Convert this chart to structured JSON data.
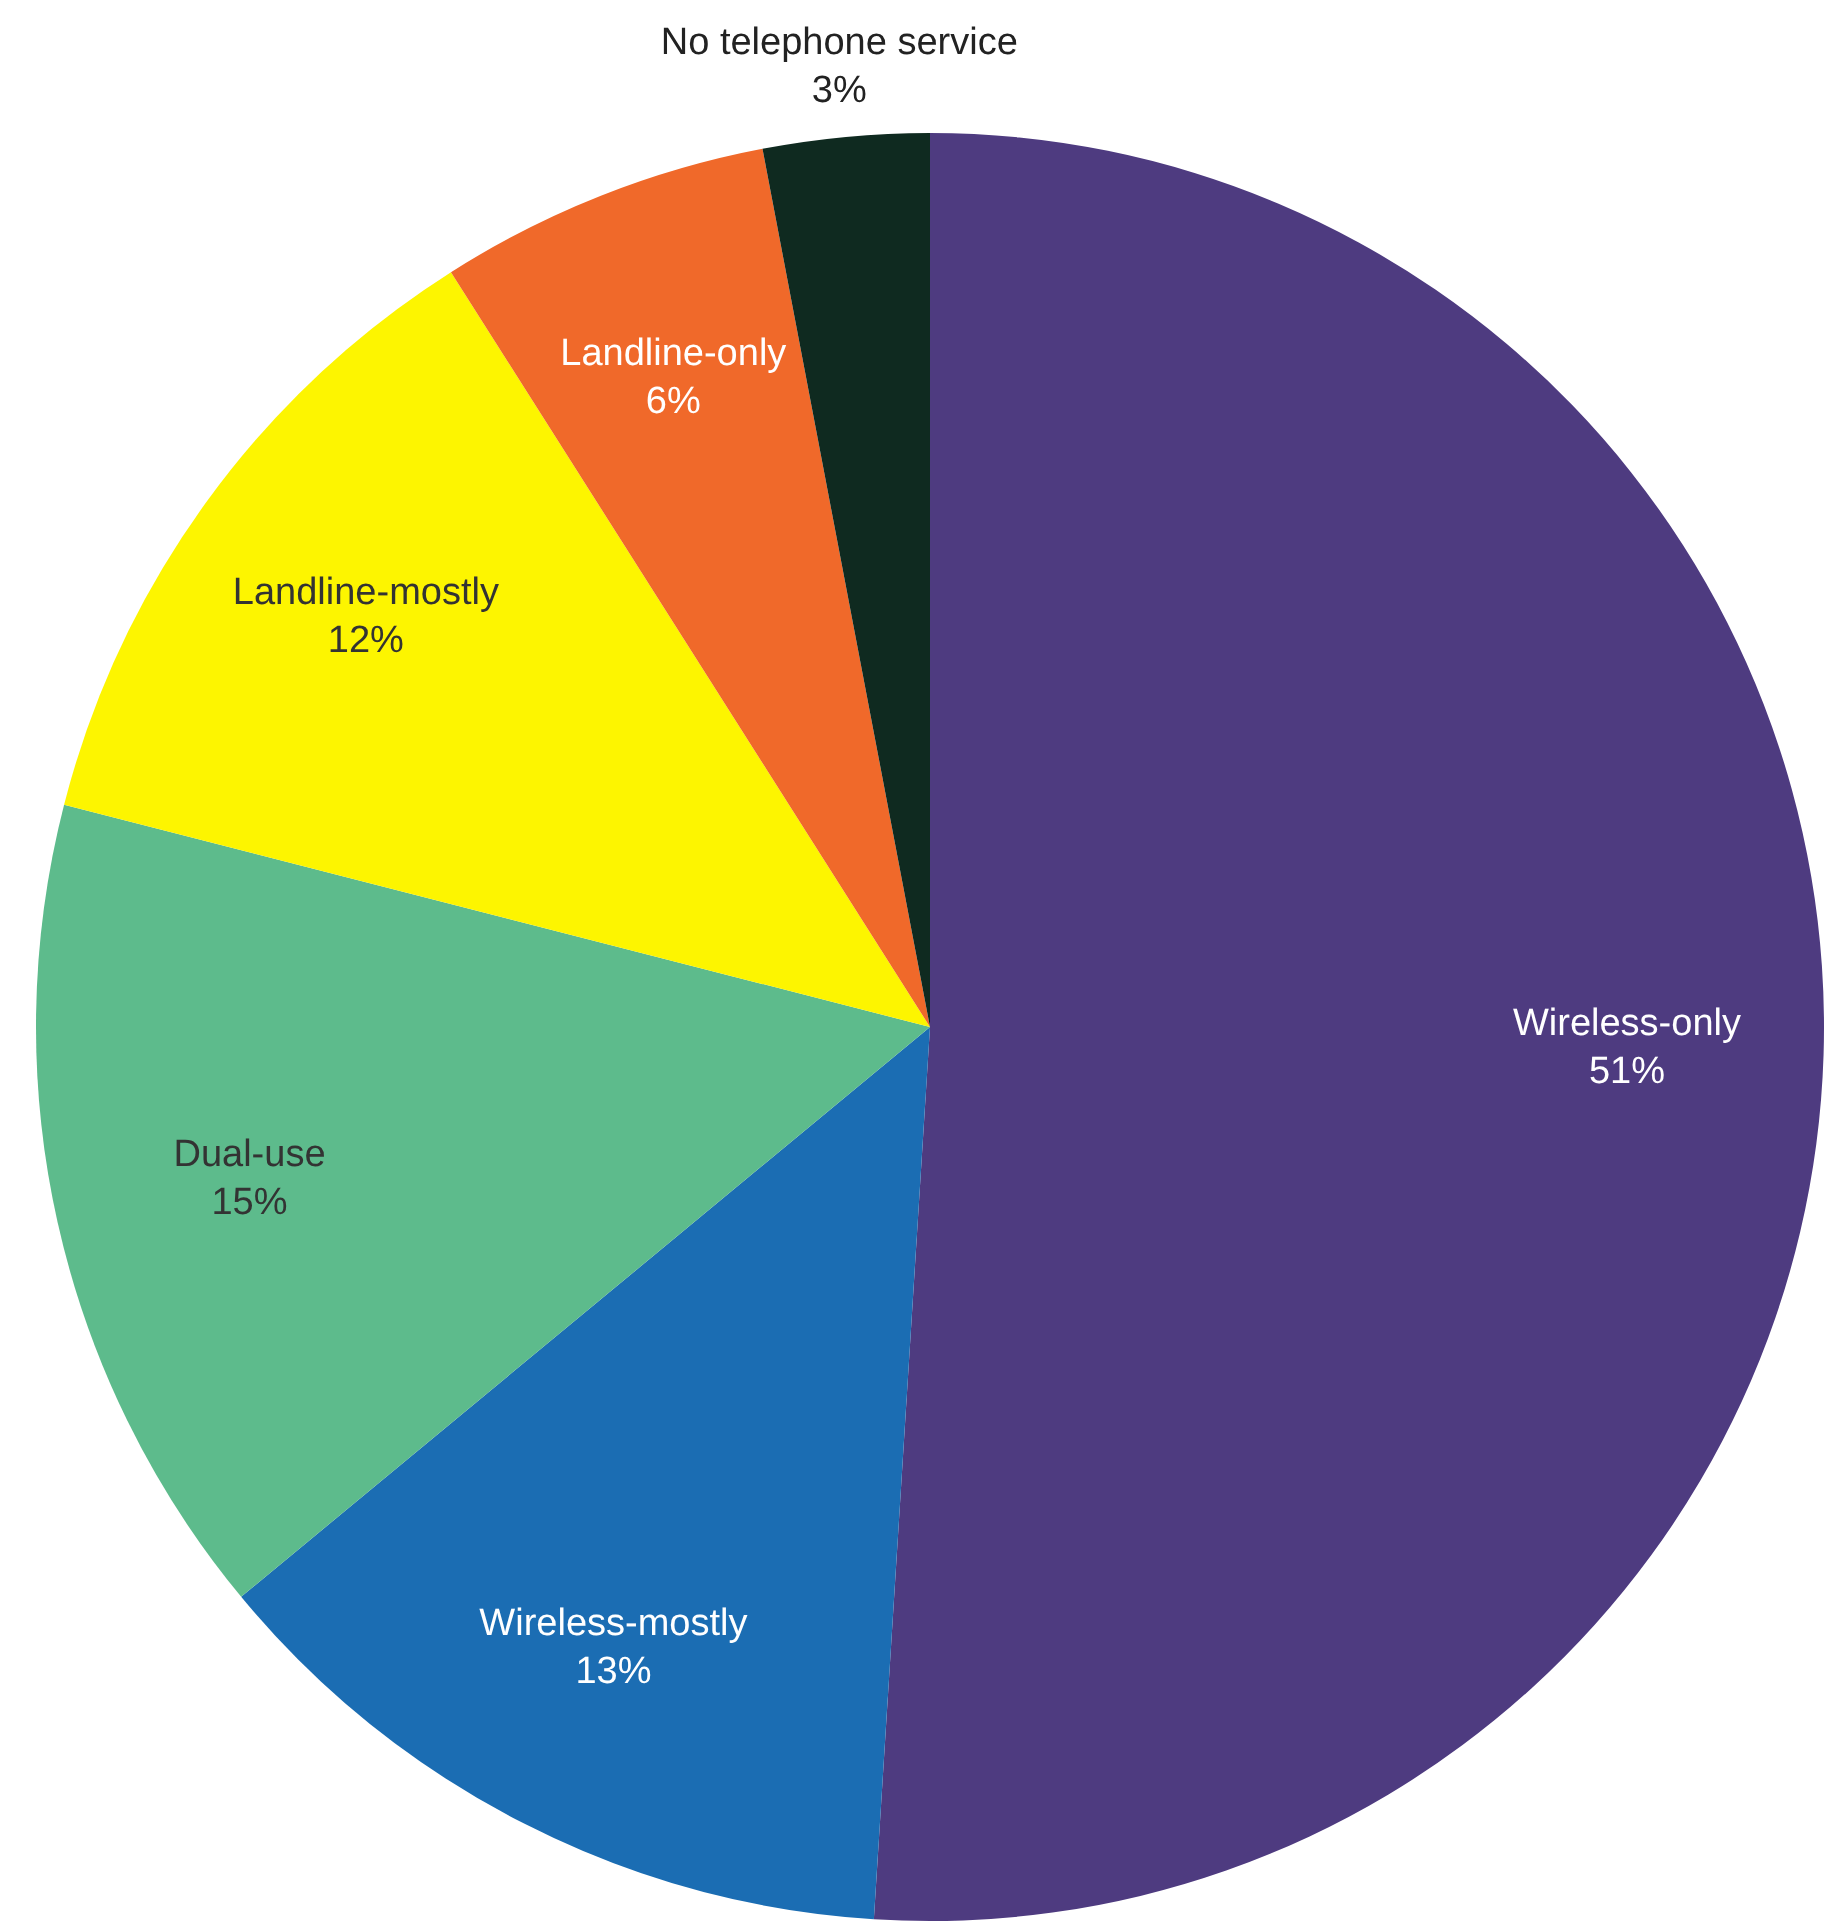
{
  "chart_data": {
    "type": "pie",
    "categories": [
      "Wireless-only",
      "Wireless-mostly",
      "Dual-use",
      "Landline-mostly",
      "Landline-only",
      "No telephone service"
    ],
    "values": [
      51,
      13,
      15,
      12,
      6,
      3
    ],
    "colors": [
      "#4e3b80",
      "#1b6db3",
      "#5dbb8c",
      "#fdf500",
      "#f0692a",
      "#0f2a20"
    ],
    "value_labels": [
      "51%",
      "13%",
      "15%",
      "12%",
      "6%",
      "3%"
    ],
    "legend": false
  }
}
